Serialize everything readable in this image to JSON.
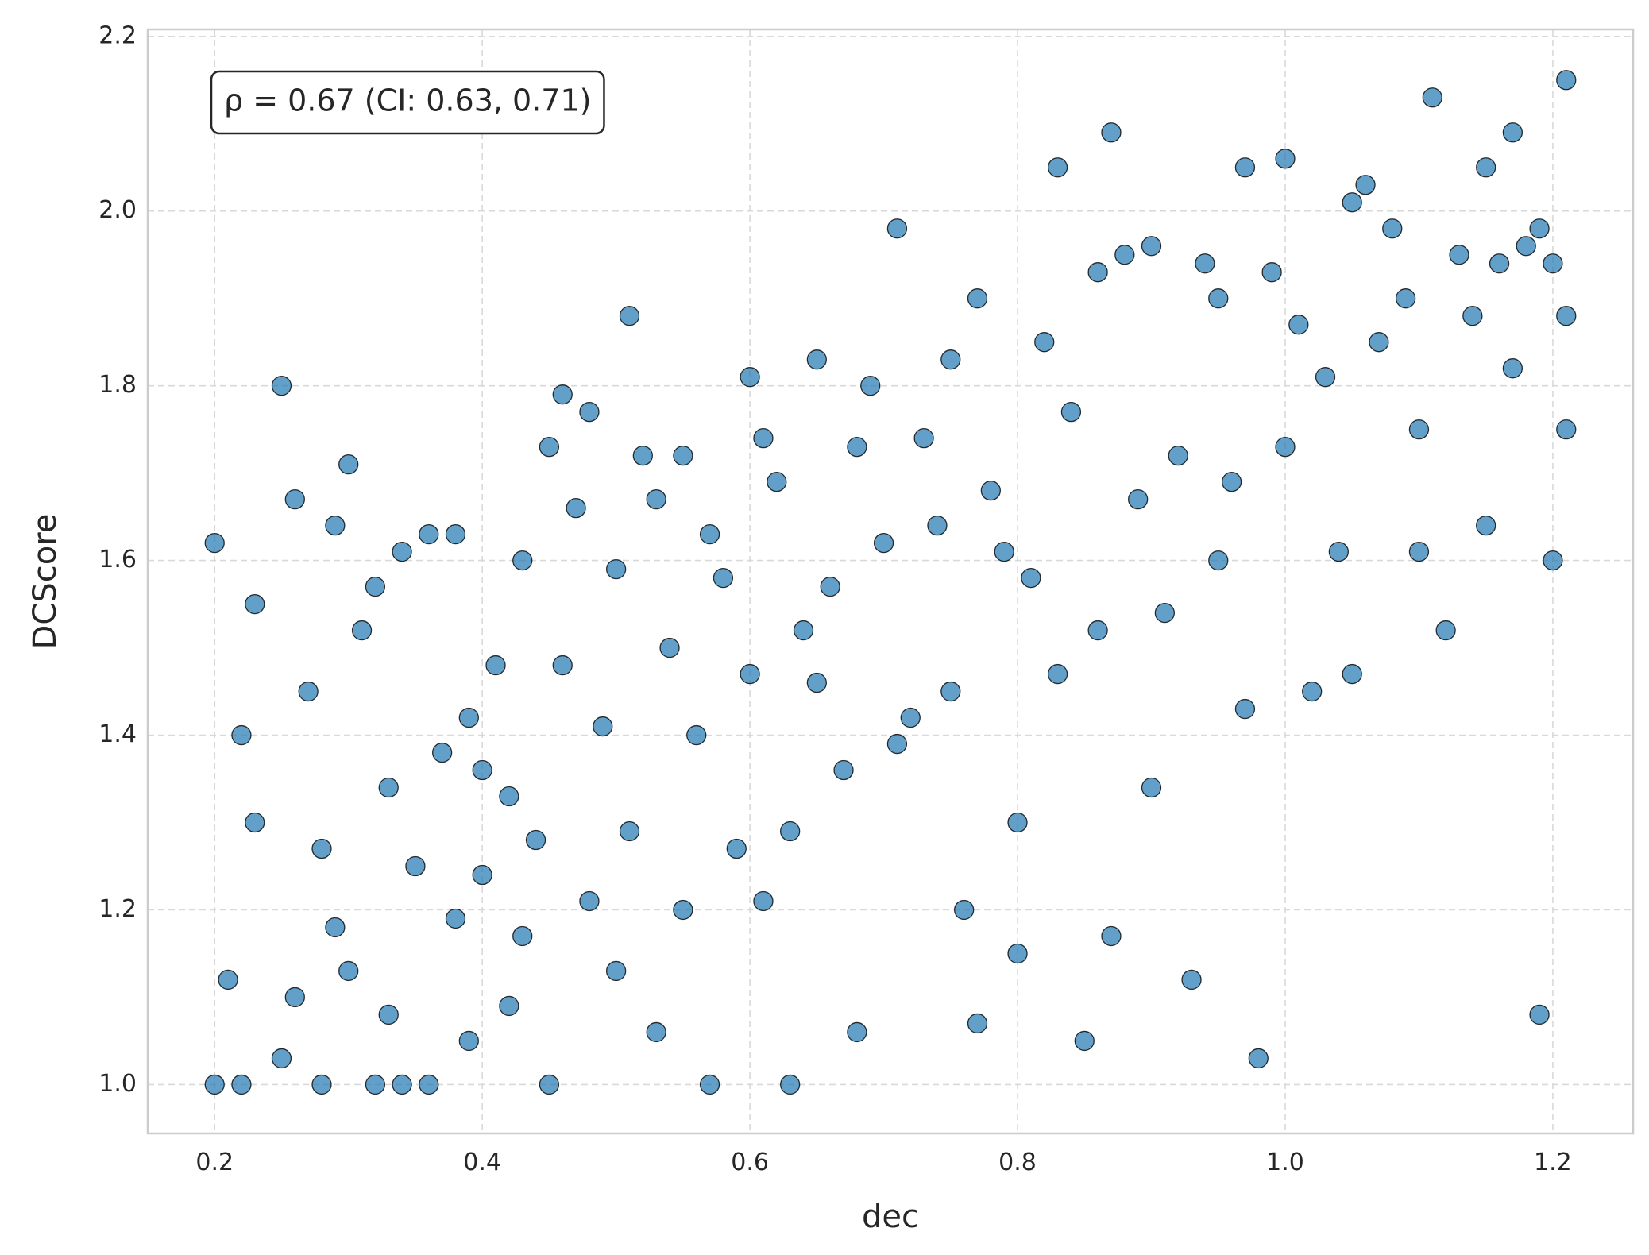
{
  "chart_data": {
    "type": "scatter",
    "xlabel": "dec",
    "ylabel": "DCScore",
    "annotation": "ρ = 0.67  (CI: 0.63, 0.71)",
    "color": "#1f77b4",
    "edgecolor": "#000000",
    "grid": true,
    "xlim": [
      0.15,
      1.26
    ],
    "ylim": [
      0.944,
      2.208
    ],
    "xticks": [
      0.2,
      0.4,
      0.6,
      0.8,
      {
        "value": 1,
        "label": "1.0"
      },
      1.2
    ],
    "yticks": [
      {
        "value": 1,
        "label": "1.0"
      },
      1.2,
      1.4,
      1.6,
      1.8,
      {
        "value": 2,
        "label": "2.0"
      },
      2.2
    ],
    "x": [
      0.2,
      0.2,
      0.21,
      0.22,
      0.22,
      0.23,
      0.23,
      0.25,
      0.25,
      0.26,
      0.26,
      0.27,
      0.28,
      0.28,
      0.29,
      0.29,
      0.3,
      0.3,
      0.31,
      0.32,
      0.32,
      0.33,
      0.33,
      0.34,
      0.34,
      0.35,
      0.36,
      0.36,
      0.37,
      0.38,
      0.38,
      0.39,
      0.39,
      0.4,
      0.4,
      0.41,
      0.42,
      0.42,
      0.43,
      0.43,
      0.44,
      0.45,
      0.45,
      0.46,
      0.46,
      0.47,
      0.48,
      0.48,
      0.49,
      0.5,
      0.5,
      0.51,
      0.51,
      0.52,
      0.53,
      0.53,
      0.54,
      0.55,
      0.55,
      0.56,
      0.57,
      0.57,
      0.58,
      0.59,
      0.6,
      0.6,
      0.61,
      0.61,
      0.62,
      0.63,
      0.63,
      0.64,
      0.65,
      0.65,
      0.66,
      0.67,
      0.68,
      0.68,
      0.69,
      0.7,
      0.71,
      0.71,
      0.72,
      0.73,
      0.74,
      0.75,
      0.75,
      0.76,
      0.77,
      0.77,
      0.78,
      0.79,
      0.8,
      0.8,
      0.81,
      0.82,
      0.83,
      0.83,
      0.84,
      0.85,
      0.86,
      0.86,
      0.87,
      0.87,
      0.88,
      0.89,
      0.9,
      0.9,
      0.91,
      0.92,
      0.93,
      0.94,
      0.95,
      0.95,
      0.96,
      0.97,
      0.97,
      0.98,
      0.99,
      1.0,
      1.0,
      1.01,
      1.02,
      1.03,
      1.04,
      1.05,
      1.05,
      1.06,
      1.07,
      1.08,
      1.09,
      1.1,
      1.1,
      1.11,
      1.12,
      1.13,
      1.14,
      1.15,
      1.15,
      1.16,
      1.17,
      1.17,
      1.18,
      1.19,
      1.19,
      1.2,
      1.2,
      1.21,
      1.21,
      1.21
    ],
    "values": [
      1.0,
      1.62,
      1.12,
      1.4,
      1.0,
      1.55,
      1.3,
      1.8,
      1.03,
      1.67,
      1.1,
      1.45,
      1.27,
      1.0,
      1.64,
      1.18,
      1.71,
      1.13,
      1.52,
      1.0,
      1.57,
      1.34,
      1.08,
      1.61,
      1.0,
      1.25,
      1.63,
      1.0,
      1.38,
      1.63,
      1.19,
      1.42,
      1.05,
      1.24,
      1.36,
      1.48,
      1.09,
      1.33,
      1.6,
      1.17,
      1.28,
      1.73,
      1.0,
      1.79,
      1.48,
      1.66,
      1.77,
      1.21,
      1.41,
      1.59,
      1.13,
      1.88,
      1.29,
      1.72,
      1.67,
      1.06,
      1.5,
      1.72,
      1.2,
      1.4,
      1.63,
      1.0,
      1.58,
      1.27,
      1.81,
      1.47,
      1.21,
      1.74,
      1.69,
      1.29,
      1.0,
      1.52,
      1.83,
      1.46,
      1.57,
      1.36,
      1.73,
      1.06,
      1.8,
      1.62,
      1.98,
      1.39,
      1.42,
      1.74,
      1.64,
      1.83,
      1.45,
      1.2,
      1.9,
      1.07,
      1.68,
      1.61,
      1.3,
      1.15,
      1.58,
      1.85,
      2.05,
      1.47,
      1.77,
      1.05,
      1.93,
      1.52,
      2.09,
      1.17,
      1.95,
      1.67,
      1.96,
      1.34,
      1.54,
      1.72,
      1.12,
      1.94,
      1.9,
      1.6,
      1.69,
      2.05,
      1.43,
      1.03,
      1.93,
      2.06,
      1.73,
      1.87,
      1.45,
      1.81,
      1.61,
      2.01,
      1.47,
      2.03,
      1.85,
      1.98,
      1.9,
      1.61,
      1.75,
      2.13,
      1.52,
      1.95,
      1.88,
      2.05,
      1.64,
      1.94,
      2.09,
      1.82,
      1.96,
      1.98,
      1.08,
      1.6,
      1.94,
      2.15,
      1.75,
      1.88
    ]
  }
}
